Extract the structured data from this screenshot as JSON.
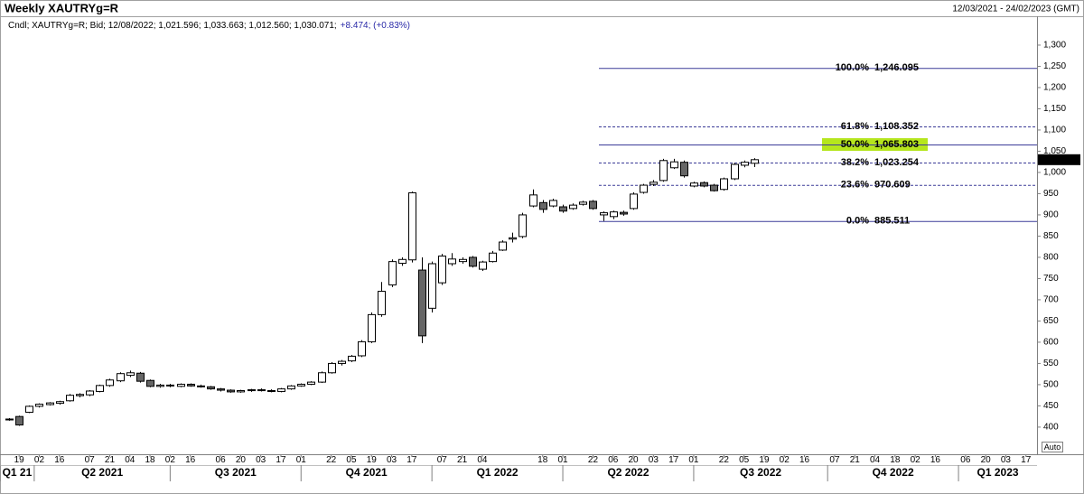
{
  "chart_data": {
    "type": "candlestick",
    "title": "Weekly XAUTRYg=R",
    "date_range": "12/03/2021 - 24/02/2023 (GMT)",
    "info": "Cndl; XAUTRYg=R; Bid; 12/08/2022; 1,021.596; 1,033.663; 1,012.560; 1,030.071;",
    "change": "+8.474; (+0.83%)",
    "change_color": "#2a2aa8",
    "open": [
      418,
      425,
      435,
      449,
      453,
      456,
      462,
      474,
      476,
      484,
      498,
      509,
      522,
      527,
      510,
      496,
      499,
      496,
      501,
      497,
      495,
      490,
      487,
      483,
      486,
      488,
      486,
      484,
      490,
      497,
      501,
      506,
      528,
      550,
      556,
      568,
      601,
      665,
      735,
      786,
      794,
      770,
      680,
      740,
      785,
      790,
      800,
      772,
      790,
      817,
      843,
      849,
      921,
      929,
      921,
      919,
      915,
      925,
      932,
      900,
      896,
      906,
      915,
      953,
      972,
      981,
      1011,
      1024,
      968,
      976,
      970,
      960,
      985,
      1017,
      1021.596
    ],
    "high": [
      421,
      427,
      451,
      456,
      459,
      462,
      478,
      480,
      487,
      500,
      514,
      529,
      533,
      530,
      512,
      502,
      502,
      503,
      503,
      500,
      497,
      492,
      489,
      488,
      490,
      491,
      489,
      492,
      499,
      503,
      508,
      531,
      553,
      558,
      570,
      605,
      670,
      742,
      795,
      800,
      955,
      800,
      790,
      808,
      810,
      800,
      803,
      792,
      815,
      840,
      858,
      905,
      960,
      935,
      938,
      924,
      927,
      933,
      935,
      908,
      910,
      910,
      953,
      973,
      982,
      1032,
      1032,
      1028,
      978,
      979,
      973,
      988,
      1022,
      1028,
      1033.663
    ],
    "low": [
      415,
      403,
      433,
      446,
      451,
      453,
      460,
      470,
      473,
      482,
      495,
      506,
      518,
      505,
      494,
      493,
      494,
      494,
      495,
      493,
      488,
      484,
      481,
      481,
      483,
      484,
      482,
      482,
      488,
      495,
      499,
      504,
      526,
      545,
      553,
      565,
      598,
      660,
      730,
      780,
      788,
      598,
      670,
      735,
      780,
      785,
      776,
      768,
      788,
      815,
      835,
      845,
      918,
      905,
      918,
      905,
      912,
      922,
      912,
      885.511,
      890,
      898,
      912,
      950,
      968,
      978,
      1008,
      988,
      965,
      965,
      955,
      957,
      982,
      1012,
      1012.56
    ],
    "close": [
      419,
      405,
      449,
      454,
      457,
      460,
      475,
      477,
      485,
      498,
      511,
      526,
      528,
      508,
      496,
      499,
      497,
      501,
      497,
      495,
      490,
      487,
      483,
      486,
      488,
      486,
      484,
      490,
      497,
      501,
      506,
      528,
      550,
      555,
      567,
      601,
      665,
      720,
      790,
      795,
      952,
      615,
      785,
      803,
      796,
      795,
      779,
      789,
      810,
      836,
      846,
      900,
      947,
      913,
      934,
      909,
      923,
      930,
      915,
      905,
      907,
      902,
      949,
      970,
      977,
      1028,
      1025,
      992,
      975,
      968,
      957,
      985,
      1019,
      1024,
      1030.071
    ],
    "last_value_label": "1,030.071",
    "up_color": "#ffffff",
    "down_color": "#666666",
    "outline_color": "#000000",
    "xlim": [
      -0.9,
      102.1
    ],
    "xticks": [
      {
        "value": 1,
        "label": "19"
      },
      {
        "value": 3,
        "label": "02"
      },
      {
        "value": 5,
        "label": "16"
      },
      {
        "value": 8,
        "label": "07"
      },
      {
        "value": 10,
        "label": "21"
      },
      {
        "value": 12,
        "label": "04"
      },
      {
        "value": 14,
        "label": "18"
      },
      {
        "value": 16,
        "label": "02"
      },
      {
        "value": 18,
        "label": "16"
      },
      {
        "value": 21,
        "label": "06"
      },
      {
        "value": 23,
        "label": "20"
      },
      {
        "value": 25,
        "label": "03"
      },
      {
        "value": 27,
        "label": "17"
      },
      {
        "value": 29,
        "label": "01"
      },
      {
        "value": 32,
        "label": "22"
      },
      {
        "value": 34,
        "label": "05"
      },
      {
        "value": 36,
        "label": "19"
      },
      {
        "value": 38,
        "label": "03"
      },
      {
        "value": 40,
        "label": "17"
      },
      {
        "value": 43,
        "label": "07"
      },
      {
        "value": 45,
        "label": "21"
      },
      {
        "value": 47,
        "label": "04"
      },
      {
        "value": 53,
        "label": "18"
      },
      {
        "value": 55,
        "label": "01"
      },
      {
        "value": 58,
        "label": "22"
      },
      {
        "value": 60,
        "label": "06"
      },
      {
        "value": 62,
        "label": "20"
      },
      {
        "value": 64,
        "label": "03"
      },
      {
        "value": 66,
        "label": "17"
      },
      {
        "value": 68,
        "label": "01"
      },
      {
        "value": 71,
        "label": "22"
      },
      {
        "value": 73,
        "label": "05"
      },
      {
        "value": 75,
        "label": "19"
      },
      {
        "value": 77,
        "label": "02"
      },
      {
        "value": 79,
        "label": "16"
      },
      {
        "value": 82,
        "label": "07"
      },
      {
        "value": 84,
        "label": "21"
      },
      {
        "value": 86,
        "label": "04"
      },
      {
        "value": 88,
        "label": "18"
      },
      {
        "value": 90,
        "label": "02"
      },
      {
        "value": 92,
        "label": "16"
      },
      {
        "value": 95,
        "label": "06"
      },
      {
        "value": 97,
        "label": "20"
      },
      {
        "value": 99,
        "label": "03"
      },
      {
        "value": 101,
        "label": "17"
      }
    ],
    "quarters": [
      {
        "value": -0.9,
        "label": "Q1 21"
      },
      {
        "value": 2.5,
        "label": "Q2 2021"
      },
      {
        "value": 16,
        "label": "Q3 2021"
      },
      {
        "value": 29,
        "label": "Q4 2021"
      },
      {
        "value": 42,
        "label": "Q1 2022"
      },
      {
        "value": 55,
        "label": "Q2 2022"
      },
      {
        "value": 68,
        "label": "Q3 2022"
      },
      {
        "value": 81.3,
        "label": "Q4 2022"
      },
      {
        "value": 94.3,
        "label": "Q1 2023"
      }
    ],
    "ylim": [
      336,
      1368
    ],
    "yticks": [
      400,
      450,
      500,
      550,
      600,
      650,
      700,
      750,
      800,
      850,
      900,
      950,
      {
        "value": 1000,
        "label": "1,000"
      },
      {
        "value": 1050,
        "label": "1,050"
      },
      {
        "value": 1100,
        "label": "1,100"
      },
      {
        "value": 1150,
        "label": "1,150"
      },
      {
        "value": 1200,
        "label": "1,200"
      },
      {
        "value": 1250,
        "label": "1,250"
      },
      {
        "value": 1300,
        "label": "1,300"
      }
    ],
    "fibonacci": {
      "color": "#3b3b98",
      "text_color": "#1a1a7a",
      "highlight_color": "#b5e61d",
      "levels": [
        {
          "label": "100.0%",
          "value": 1246.095,
          "value_label": "1,246.095",
          "dashed": false,
          "highlight": false
        },
        {
          "label": "61.8%",
          "value": 1108.352,
          "value_label": "1,108.352",
          "dashed": true,
          "highlight": false
        },
        {
          "label": "50.0%",
          "value": 1065.803,
          "value_label": "1,065.803",
          "dashed": false,
          "highlight": true
        },
        {
          "label": "38.2%",
          "value": 1023.254,
          "value_label": "1,023.254",
          "dashed": true,
          "highlight": false
        },
        {
          "label": "23.6%",
          "value": 970.609,
          "value_label": "970.609",
          "dashed": true,
          "highlight": false
        },
        {
          "label": "0.0%",
          "value": 885.511,
          "value_label": "885.511",
          "dashed": false,
          "highlight": false
        }
      ]
    },
    "auto_label": "Auto"
  }
}
